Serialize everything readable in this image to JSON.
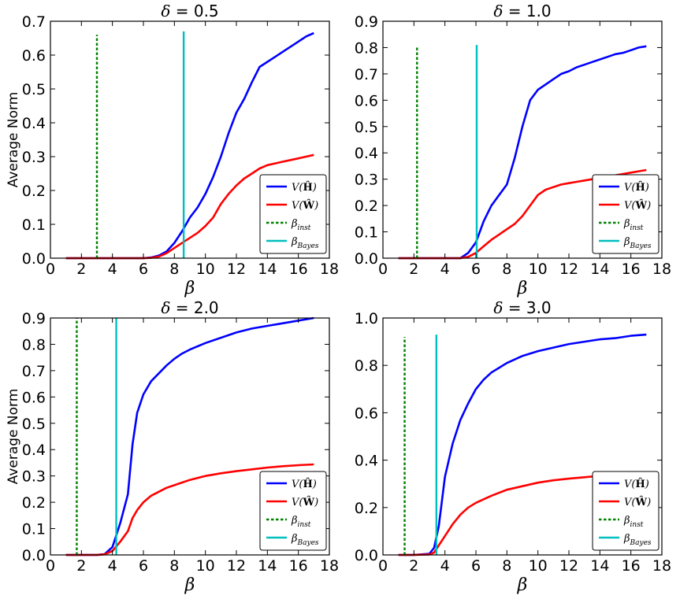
{
  "chart_data": [
    {
      "type": "line",
      "title_prefix": "δ",
      "title_value": "= 0.5",
      "xlabel": "β",
      "ylabel": "Average Norm",
      "xlim": [
        0,
        18
      ],
      "ylim": [
        0,
        0.7
      ],
      "xticks": [
        0,
        2,
        4,
        6,
        8,
        10,
        12,
        14,
        16,
        18
      ],
      "yticks": [
        "0.0",
        "0.1",
        "0.2",
        "0.3",
        "0.4",
        "0.5",
        "0.6",
        "0.7"
      ],
      "series": [
        {
          "name": "V(Ĥ)",
          "color": "#0000ff",
          "x": [
            1,
            2,
            3,
            4,
            5,
            6,
            6.5,
            7,
            7.5,
            8,
            8.5,
            9,
            9.5,
            10,
            10.5,
            11,
            11.5,
            12,
            12.5,
            13,
            13.5,
            14,
            14.5,
            15,
            15.5,
            16,
            16.5,
            17
          ],
          "y": [
            0,
            0,
            0,
            0,
            0,
            0,
            0.002,
            0.008,
            0.02,
            0.045,
            0.08,
            0.12,
            0.15,
            0.19,
            0.24,
            0.3,
            0.37,
            0.43,
            0.47,
            0.52,
            0.565,
            0.58,
            0.595,
            0.61,
            0.625,
            0.64,
            0.655,
            0.665
          ]
        },
        {
          "name": "V(Ŵ)",
          "color": "#ff0000",
          "x": [
            1,
            2,
            3,
            4,
            5,
            6,
            6.5,
            7,
            7.5,
            8,
            8.5,
            9,
            9.5,
            10,
            10.5,
            11,
            11.5,
            12,
            12.5,
            13,
            13.5,
            14,
            14.5,
            15,
            15.5,
            16,
            16.5,
            17
          ],
          "y": [
            0,
            0,
            0,
            0,
            0,
            0,
            0.001,
            0.005,
            0.015,
            0.03,
            0.045,
            0.06,
            0.075,
            0.095,
            0.12,
            0.16,
            0.19,
            0.215,
            0.235,
            0.25,
            0.265,
            0.275,
            0.28,
            0.285,
            0.29,
            0.295,
            0.3,
            0.305
          ]
        }
      ],
      "vlines": [
        {
          "name": "β_inst",
          "x": 3.0,
          "ymax": 0.66,
          "color": "#008000",
          "style": "dashed"
        },
        {
          "name": "β_Bayes",
          "x": 8.6,
          "ymax": 0.67,
          "color": "#00bfbf",
          "style": "solid"
        }
      ]
    },
    {
      "type": "line",
      "title_prefix": "δ",
      "title_value": "= 1.0",
      "xlabel": "β",
      "ylabel": "",
      "xlim": [
        0,
        18
      ],
      "ylim": [
        0,
        0.9
      ],
      "xticks": [
        0,
        2,
        4,
        6,
        8,
        10,
        12,
        14,
        16,
        18
      ],
      "yticks": [
        "0.0",
        "0.1",
        "0.2",
        "0.3",
        "0.4",
        "0.5",
        "0.6",
        "0.7",
        "0.8",
        "0.9"
      ],
      "series": [
        {
          "name": "V(Ĥ)",
          "color": "#0000ff",
          "x": [
            1,
            2,
            3,
            4,
            5,
            5.5,
            6,
            6.5,
            7,
            7.5,
            8,
            8.5,
            9,
            9.5,
            10,
            10.5,
            11,
            11.5,
            12,
            12.5,
            13,
            13.5,
            14,
            14.5,
            15,
            15.5,
            16,
            16.5,
            17
          ],
          "y": [
            0,
            0,
            0,
            0,
            0,
            0.02,
            0.06,
            0.14,
            0.2,
            0.24,
            0.28,
            0.38,
            0.5,
            0.6,
            0.64,
            0.66,
            0.68,
            0.7,
            0.71,
            0.725,
            0.735,
            0.745,
            0.755,
            0.765,
            0.775,
            0.78,
            0.79,
            0.8,
            0.805
          ]
        },
        {
          "name": "V(Ŵ)",
          "color": "#ff0000",
          "x": [
            1,
            2,
            3,
            4,
            5,
            5.5,
            6,
            6.5,
            7,
            7.5,
            8,
            8.5,
            9,
            9.5,
            10,
            10.5,
            11,
            11.5,
            12,
            12.5,
            13,
            13.5,
            14,
            14.5,
            15,
            15.5,
            16,
            16.5,
            17
          ],
          "y": [
            0,
            0,
            0,
            0,
            0,
            0.005,
            0.02,
            0.045,
            0.07,
            0.09,
            0.11,
            0.13,
            0.16,
            0.2,
            0.24,
            0.26,
            0.27,
            0.28,
            0.285,
            0.29,
            0.295,
            0.3,
            0.305,
            0.31,
            0.315,
            0.32,
            0.325,
            0.33,
            0.335
          ]
        }
      ],
      "vlines": [
        {
          "name": "β_inst",
          "x": 2.2,
          "ymax": 0.8,
          "color": "#008000",
          "style": "dashed"
        },
        {
          "name": "β_Bayes",
          "x": 6.05,
          "ymax": 0.81,
          "color": "#00bfbf",
          "style": "solid"
        }
      ]
    },
    {
      "type": "line",
      "title_prefix": "δ",
      "title_value": "= 2.0",
      "xlabel": "β",
      "ylabel": "Average Norm",
      "xlim": [
        0,
        18
      ],
      "ylim": [
        0,
        0.9
      ],
      "xticks": [
        0,
        2,
        4,
        6,
        8,
        10,
        12,
        14,
        16,
        18
      ],
      "yticks": [
        "0.0",
        "0.1",
        "0.2",
        "0.3",
        "0.4",
        "0.5",
        "0.6",
        "0.7",
        "0.8",
        "0.9"
      ],
      "series": [
        {
          "name": "V(Ĥ)",
          "color": "#0000ff",
          "x": [
            1,
            2,
            3,
            3.5,
            4,
            4.5,
            5,
            5.3,
            5.6,
            6,
            6.5,
            7,
            7.5,
            8,
            8.5,
            9,
            10,
            11,
            12,
            13,
            14,
            15,
            16,
            17
          ],
          "y": [
            0,
            0,
            0,
            0.003,
            0.03,
            0.12,
            0.23,
            0.42,
            0.54,
            0.61,
            0.66,
            0.69,
            0.72,
            0.745,
            0.765,
            0.78,
            0.805,
            0.825,
            0.845,
            0.86,
            0.87,
            0.88,
            0.89,
            0.9
          ]
        },
        {
          "name": "V(Ŵ)",
          "color": "#ff0000",
          "x": [
            1,
            2,
            3,
            3.5,
            4,
            4.5,
            5,
            5.3,
            5.6,
            6,
            6.5,
            7,
            7.5,
            8,
            8.5,
            9,
            10,
            11,
            12,
            13,
            14,
            15,
            16,
            17
          ],
          "y": [
            0,
            0,
            0,
            0.002,
            0.015,
            0.05,
            0.09,
            0.14,
            0.17,
            0.2,
            0.225,
            0.24,
            0.255,
            0.265,
            0.275,
            0.285,
            0.3,
            0.31,
            0.318,
            0.325,
            0.332,
            0.337,
            0.341,
            0.344
          ]
        }
      ],
      "vlines": [
        {
          "name": "β_inst",
          "x": 1.7,
          "ymax": 0.9,
          "color": "#008000",
          "style": "dashed"
        },
        {
          "name": "β_Bayes",
          "x": 4.25,
          "ymax": 0.9,
          "color": "#00bfbf",
          "style": "solid"
        }
      ]
    },
    {
      "type": "line",
      "title_prefix": "δ",
      "title_value": "= 3.0",
      "xlabel": "β",
      "ylabel": "",
      "xlim": [
        0,
        18
      ],
      "ylim": [
        0,
        1.0
      ],
      "xticks": [
        0,
        2,
        4,
        6,
        8,
        10,
        12,
        14,
        16,
        18
      ],
      "yticks": [
        "0.0",
        "0.2",
        "0.4",
        "0.6",
        "0.8",
        "1.0"
      ],
      "series": [
        {
          "name": "V(Ĥ)",
          "color": "#0000ff",
          "x": [
            1,
            2,
            3,
            3.3,
            3.6,
            4,
            4.5,
            5,
            5.5,
            6,
            6.5,
            7,
            8,
            9,
            10,
            11,
            12,
            13,
            14,
            15,
            16,
            17
          ],
          "y": [
            0,
            0,
            0.005,
            0.03,
            0.12,
            0.33,
            0.47,
            0.57,
            0.64,
            0.7,
            0.74,
            0.77,
            0.81,
            0.84,
            0.86,
            0.875,
            0.89,
            0.9,
            0.91,
            0.915,
            0.925,
            0.93
          ]
        },
        {
          "name": "V(Ŵ)",
          "color": "#ff0000",
          "x": [
            1,
            2,
            3,
            3.3,
            3.6,
            4,
            4.5,
            5,
            5.5,
            6,
            6.5,
            7,
            8,
            9,
            10,
            11,
            12,
            13,
            14,
            15,
            16,
            17
          ],
          "y": [
            0,
            0,
            0.002,
            0.01,
            0.04,
            0.08,
            0.13,
            0.17,
            0.2,
            0.22,
            0.235,
            0.25,
            0.275,
            0.29,
            0.305,
            0.315,
            0.322,
            0.328,
            0.334,
            0.339,
            0.344,
            0.348
          ]
        }
      ],
      "vlines": [
        {
          "name": "β_inst",
          "x": 1.4,
          "ymax": 0.92,
          "color": "#008000",
          "style": "dashed"
        },
        {
          "name": "β_Bayes",
          "x": 3.45,
          "ymax": 0.93,
          "color": "#00bfbf",
          "style": "solid"
        }
      ]
    }
  ],
  "legend": {
    "h_prefix": "V(",
    "h_symbol": "Ĥ",
    "w_symbol": "Ŵ",
    "suffix": ")",
    "beta": "β",
    "inst_sub": "inst",
    "bayes_sub": "Bayes"
  }
}
